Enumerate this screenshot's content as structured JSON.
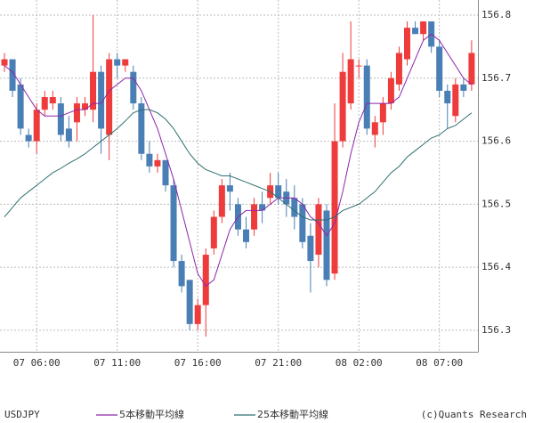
{
  "chart_data": {
    "type": "candlestick",
    "title": "USDJPY",
    "credit": "(c)Quants Research",
    "categories": [
      null,
      null,
      null,
      null,
      "07 06:00",
      null,
      null,
      null,
      null,
      null,
      null,
      null,
      null,
      null,
      "07 11:00",
      null,
      null,
      null,
      null,
      null,
      null,
      null,
      null,
      null,
      "07 16:00",
      null,
      null,
      null,
      null,
      null,
      null,
      null,
      null,
      null,
      "07 21:00",
      null,
      null,
      null,
      null,
      null,
      null,
      null,
      null,
      null,
      "08 02:00",
      null,
      null,
      null,
      null,
      null,
      null,
      null,
      null,
      null,
      "08 07:00",
      null,
      null,
      null,
      null
    ],
    "open": [
      156.72,
      156.73,
      156.69,
      156.61,
      156.6,
      156.65,
      156.66,
      156.66,
      156.62,
      156.63,
      156.65,
      156.65,
      156.71,
      156.61,
      156.73,
      156.72,
      156.71,
      156.66,
      156.58,
      156.56,
      156.57,
      156.53,
      156.41,
      156.38,
      156.31,
      156.34,
      156.43,
      156.48,
      156.53,
      156.5,
      156.46,
      156.46,
      156.5,
      156.51,
      156.53,
      156.52,
      156.51,
      156.5,
      156.45,
      156.42,
      156.49,
      156.39,
      156.6,
      156.66,
      156.72,
      156.72,
      156.61,
      156.63,
      156.66,
      156.69,
      156.73,
      156.78,
      156.77,
      156.79,
      156.75,
      156.68,
      156.64,
      156.69,
      156.69
    ],
    "high": [
      156.74,
      156.73,
      156.7,
      156.62,
      156.66,
      156.68,
      156.68,
      156.67,
      156.64,
      156.67,
      156.67,
      156.8,
      156.72,
      156.74,
      156.74,
      156.73,
      156.72,
      156.67,
      156.6,
      156.58,
      156.57,
      156.54,
      156.42,
      156.38,
      156.35,
      156.43,
      156.49,
      156.54,
      156.55,
      156.51,
      156.48,
      156.51,
      156.52,
      156.55,
      156.55,
      156.54,
      156.53,
      156.51,
      156.47,
      156.51,
      156.5,
      156.66,
      156.74,
      156.79,
      156.73,
      156.73,
      156.64,
      156.67,
      156.71,
      156.75,
      156.79,
      156.79,
      156.79,
      156.79,
      156.76,
      156.69,
      156.7,
      156.7,
      156.76
    ],
    "low": [
      156.71,
      156.67,
      156.61,
      156.59,
      156.58,
      156.64,
      156.65,
      156.6,
      156.59,
      156.6,
      156.64,
      156.63,
      156.58,
      156.57,
      156.7,
      156.71,
      156.65,
      156.57,
      156.55,
      156.55,
      156.52,
      156.4,
      156.36,
      156.3,
      156.3,
      156.29,
      156.42,
      156.47,
      156.49,
      156.45,
      156.43,
      156.45,
      156.47,
      156.5,
      156.5,
      156.48,
      156.46,
      156.43,
      156.36,
      156.4,
      156.37,
      156.38,
      156.59,
      156.65,
      156.7,
      156.61,
      156.59,
      156.61,
      156.65,
      156.68,
      156.72,
      156.77,
      156.76,
      156.74,
      156.67,
      156.62,
      156.63,
      156.67,
      156.68
    ],
    "close": [
      156.73,
      156.68,
      156.62,
      156.6,
      156.65,
      156.67,
      156.67,
      156.61,
      156.6,
      156.66,
      156.66,
      156.71,
      156.62,
      156.73,
      156.72,
      156.73,
      156.66,
      156.58,
      156.56,
      156.57,
      156.53,
      156.41,
      156.37,
      156.31,
      156.34,
      156.42,
      156.48,
      156.53,
      156.52,
      156.46,
      156.44,
      156.5,
      156.49,
      156.53,
      156.51,
      156.5,
      156.48,
      156.44,
      156.41,
      156.5,
      156.38,
      156.6,
      156.71,
      156.73,
      156.72,
      156.62,
      156.63,
      156.66,
      156.7,
      156.74,
      156.78,
      156.77,
      156.79,
      156.75,
      156.68,
      156.66,
      156.69,
      156.68,
      156.74
    ],
    "up_color": "#ee3b3b",
    "down_color": "#4a7fb5",
    "series": [
      {
        "name": "5本移動平均線",
        "color": "#8e24aa",
        "values": [
          156.72,
          156.71,
          156.69,
          156.67,
          156.65,
          156.64,
          156.64,
          156.64,
          156.645,
          156.65,
          156.65,
          156.66,
          156.66,
          156.68,
          156.69,
          156.7,
          156.7,
          156.68,
          156.65,
          156.62,
          156.58,
          156.54,
          156.49,
          156.44,
          156.39,
          156.37,
          156.38,
          156.42,
          156.46,
          156.48,
          156.49,
          156.49,
          156.49,
          156.5,
          156.51,
          156.51,
          156.51,
          156.5,
          156.48,
          156.47,
          156.45,
          156.47,
          156.52,
          156.58,
          156.63,
          156.66,
          156.66,
          156.66,
          156.66,
          156.67,
          156.7,
          156.73,
          156.76,
          156.77,
          156.76,
          156.74,
          156.72,
          156.7,
          156.69
        ]
      },
      {
        "name": "25本移動平均線",
        "color": "#2e6f6f",
        "values": [
          156.48,
          156.495,
          156.51,
          156.52,
          156.53,
          156.54,
          156.55,
          156.557,
          156.565,
          156.572,
          156.58,
          156.59,
          156.6,
          156.61,
          156.62,
          156.632,
          156.645,
          156.65,
          156.65,
          156.645,
          156.635,
          156.62,
          156.6,
          156.58,
          156.565,
          156.555,
          156.55,
          156.545,
          156.545,
          156.54,
          156.535,
          156.53,
          156.525,
          156.52,
          156.51,
          156.5,
          156.49,
          156.48,
          156.475,
          156.475,
          156.475,
          156.48,
          156.49,
          156.495,
          156.5,
          156.51,
          156.52,
          156.535,
          156.55,
          156.56,
          156.575,
          156.585,
          156.595,
          156.605,
          156.61,
          156.62,
          156.625,
          156.635,
          156.645
        ]
      }
    ],
    "ylim": [
      156.266,
      156.824
    ],
    "yticks": [
      156.3,
      156.4,
      156.5,
      156.6,
      156.7,
      156.8
    ],
    "grid": true
  }
}
